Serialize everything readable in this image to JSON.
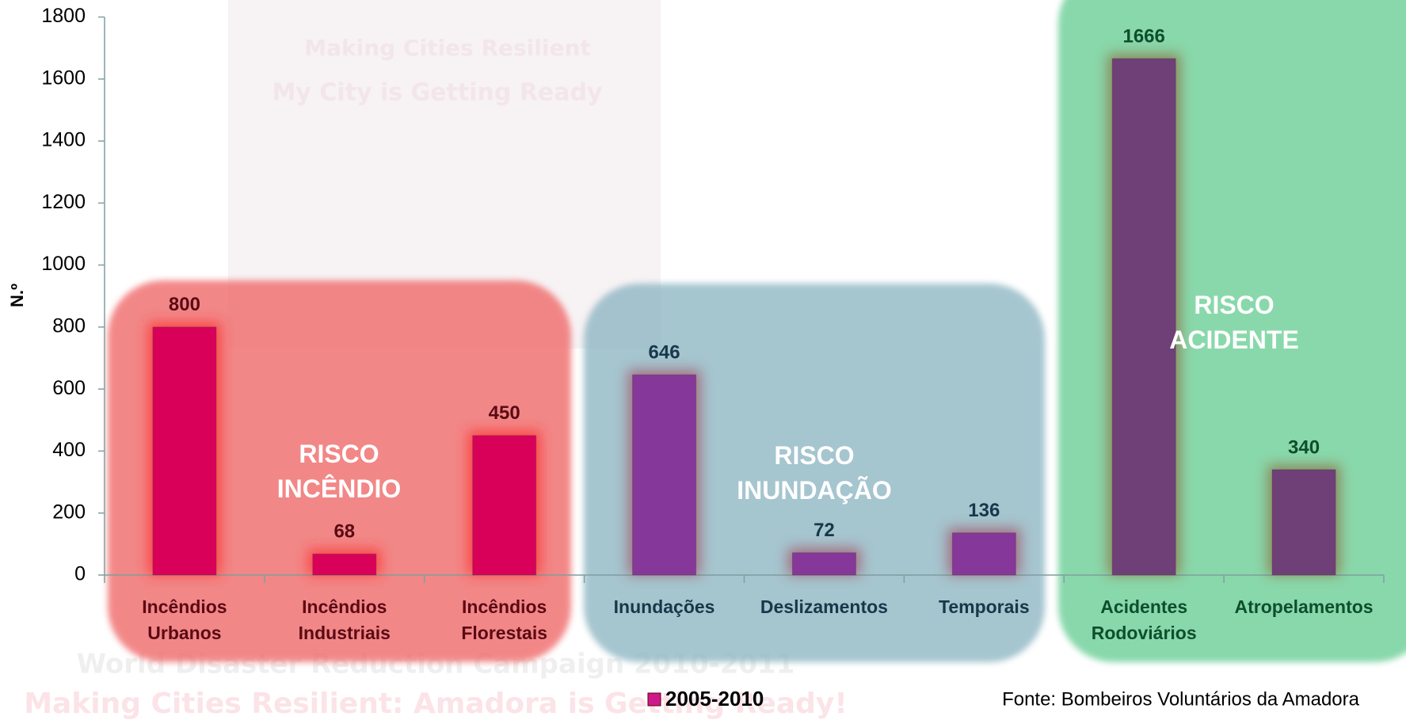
{
  "chart_data": {
    "type": "bar",
    "y_label": "N.º",
    "categories": [
      "Incêndios Urbanos",
      "Incêndios Industriais",
      "Incêndios Florestais",
      "Inundações",
      "Deslizamentos",
      "Temporais",
      "Acidentes Rodoviários",
      "Atropelamentos"
    ],
    "series": [
      {
        "name": "2005-2010",
        "color": "#cc1a8c",
        "values": [
          800,
          68,
          450,
          646,
          72,
          136,
          1666,
          340
        ],
        "colors": [
          "#d9005a",
          "#d9005a",
          "#d9005a",
          "#86379a",
          "#86379a",
          "#86379a",
          "#6f3f78",
          "#6f3f78"
        ]
      }
    ],
    "ylim": [
      0,
      1800
    ],
    "yticks": [
      0,
      200,
      400,
      600,
      800,
      1000,
      1200,
      1400,
      1600,
      1800
    ],
    "groups": [
      "RISCO INCÊNDIO",
      "RISCO INUNDAÇÃO",
      "RISCO ACIDENTE"
    ],
    "source": "Fonte: Bombeiros Voluntários da Amadora",
    "background_texts": [
      "Making Cities Resilient",
      "My City is Getting Ready",
      "World Disaster Reduction Campaign 2010-2011",
      "Making Cities Resilient: Amadora is Getting Ready!"
    ]
  }
}
